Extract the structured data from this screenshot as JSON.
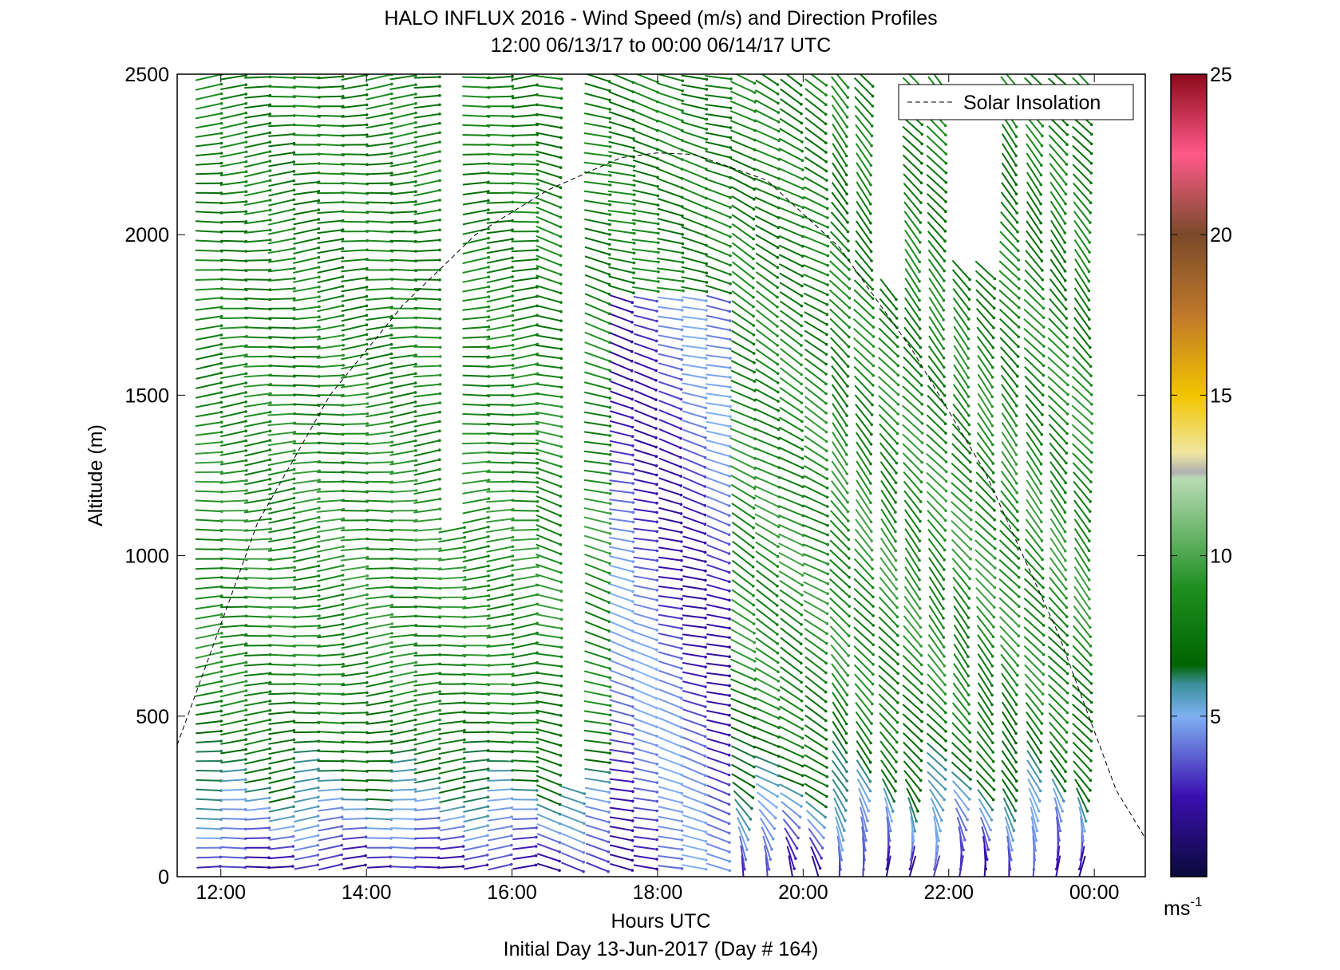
{
  "title_line1": "HALO INFLUX 2016 - Wind Speed (m/s) and Direction Profiles",
  "title_line2": "12:00 06/13/17 to 00:00 06/14/17  UTC",
  "xlabel": "Hours UTC",
  "xlabel2": "Initial Day 13-Jun-2017 (Day # 164)",
  "ylabel": "Altitude (m)",
  "legend_label": "Solar Insolation",
  "colorbar_unit_base": "ms",
  "colorbar_unit_exp": "-1",
  "chart_data": {
    "type": "quiver",
    "x_range_hours": [
      11.4,
      24.7
    ],
    "y_range_m": [
      0,
      2500
    ],
    "x_ticks": [
      {
        "value": 12,
        "label": "12:00"
      },
      {
        "value": 14,
        "label": "14:00"
      },
      {
        "value": 16,
        "label": "16:00"
      },
      {
        "value": 18,
        "label": "18:00"
      },
      {
        "value": 20,
        "label": "20:00"
      },
      {
        "value": 22,
        "label": "22:00"
      },
      {
        "value": 24,
        "label": "00:00"
      }
    ],
    "y_ticks": [
      {
        "value": 0,
        "label": "0"
      },
      {
        "value": 500,
        "label": "500"
      },
      {
        "value": 1000,
        "label": "1000"
      },
      {
        "value": 1500,
        "label": "1500"
      },
      {
        "value": 2000,
        "label": "2000"
      },
      {
        "value": 2500,
        "label": "2500"
      }
    ],
    "colorbar": {
      "range": [
        0,
        25
      ],
      "ticks": [
        {
          "value": 5,
          "label": "5"
        },
        {
          "value": 10,
          "label": "10"
        },
        {
          "value": 15,
          "label": "15"
        },
        {
          "value": 20,
          "label": "20"
        },
        {
          "value": 25,
          "label": "25"
        }
      ],
      "colormap_stops": [
        {
          "v": 0,
          "color": "#0b0a3a"
        },
        {
          "v": 2.5,
          "color": "#3a0fb0"
        },
        {
          "v": 5,
          "color": "#7fb0f2"
        },
        {
          "v": 6,
          "color": "#3a8f9a"
        },
        {
          "v": 6.6,
          "color": "#006400"
        },
        {
          "v": 9,
          "color": "#1f8f22"
        },
        {
          "v": 12.4,
          "color": "#b8dbb5"
        },
        {
          "v": 12.6,
          "color": "#b0b0b0"
        },
        {
          "v": 13.2,
          "color": "#f0e7a0"
        },
        {
          "v": 15,
          "color": "#f2c400"
        },
        {
          "v": 17.5,
          "color": "#c0782a"
        },
        {
          "v": 20,
          "color": "#7a4a2a"
        },
        {
          "v": 22.5,
          "color": "#ff5a8a"
        },
        {
          "v": 25,
          "color": "#8b0a1a"
        }
      ]
    },
    "solar_insolation_curve": {
      "style": "dashed",
      "color": "#000000",
      "points": [
        [
          11.4,
          410
        ],
        [
          12.5,
          1100
        ],
        [
          13.5,
          1500
        ],
        [
          14.5,
          1780
        ],
        [
          15.5,
          2000
        ],
        [
          16.5,
          2140
        ],
        [
          17.5,
          2240
        ],
        [
          18.0,
          2255
        ],
        [
          18.5,
          2250
        ],
        [
          19.5,
          2170
        ],
        [
          20.5,
          1960
        ],
        [
          21.5,
          1640
        ],
        [
          22.5,
          1260
        ],
        [
          23.5,
          760
        ],
        [
          24.3,
          270
        ],
        [
          24.7,
          120
        ]
      ]
    },
    "profile_times_hours": [
      11.83,
      12.17,
      12.5,
      12.83,
      13.17,
      13.5,
      13.83,
      14.17,
      14.5,
      14.83,
      15.17,
      15.5,
      15.83,
      16.17,
      16.5,
      16.83,
      17.17,
      17.5,
      17.83,
      18.17,
      18.5,
      18.83,
      19.17,
      19.5,
      19.83,
      20.17,
      20.5,
      20.83,
      21.17,
      21.5,
      21.83,
      22.17,
      22.5,
      22.83,
      23.17,
      23.5,
      23.83
    ],
    "gate_spacing_m": 30,
    "direction_regime": [
      {
        "hours": [
          11.8,
          16.5
        ],
        "dir_deg": 265,
        "note": "westerly"
      },
      {
        "hours": [
          16.5,
          19.0
        ],
        "dir_deg": 285
      },
      {
        "hours": [
          19.0,
          20.5
        ],
        "dir_deg": 300
      },
      {
        "hours": [
          20.5,
          23.9
        ],
        "dir_deg": 320
      }
    ],
    "speed_profile_m_s": [
      {
        "altitude_m": 30,
        "speed": 2.5
      },
      {
        "altitude_m": 150,
        "speed": 4.5
      },
      {
        "altitude_m": 300,
        "speed": 6.5
      },
      {
        "altitude_m": 600,
        "speed": 8.5
      },
      {
        "altitude_m": 1000,
        "speed": 9.0
      },
      {
        "altitude_m": 1500,
        "speed": 8.5
      },
      {
        "altitude_m": 2000,
        "speed": 8.0
      },
      {
        "altitude_m": 2500,
        "speed": 8.0
      }
    ],
    "data_gaps": [
      {
        "hours": [
          15.12,
          15.42
        ],
        "altitude_m": [
          1100,
          2500
        ]
      },
      {
        "hours": [
          16.58,
          16.95
        ],
        "altitude_m": [
          300,
          2500
        ]
      },
      {
        "hours": [
          20.85,
          21.25
        ],
        "altitude_m": [
          1850,
          2500
        ]
      },
      {
        "hours": [
          22.15,
          22.55
        ],
        "altitude_m": [
          1900,
          2500
        ]
      },
      {
        "hours": [
          23.9,
          24.7
        ],
        "altitude_m": [
          0,
          2500
        ]
      }
    ],
    "low_speed_band": {
      "hours": [
        17.2,
        18.9
      ],
      "altitude_m": [
        0,
        1800
      ],
      "speed_m_s": [
        2,
        5
      ]
    }
  }
}
